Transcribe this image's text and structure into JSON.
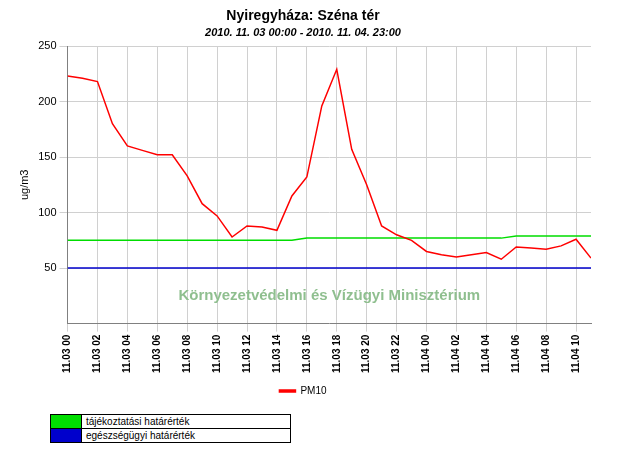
{
  "chart_data": {
    "type": "line",
    "title": "Nyiregyháza: Széna tér",
    "subtitle": "2010. 11. 03 00:00 - 2010. 11. 04. 23:00",
    "y_label": "ug/m3",
    "annotations": [
      "Környezetvédelmi és Vízügyi Minisztérium"
    ],
    "categories": [
      "11.03 00",
      null,
      "11.03 02",
      null,
      "11.03 04",
      null,
      "11.03 06",
      null,
      "11.03 08",
      null,
      "11.03 10",
      null,
      "11.03 12",
      null,
      "11.03 14",
      null,
      "11.03 16",
      null,
      "11.03 18",
      null,
      "11.03 20",
      null,
      "11.03 22",
      null,
      "11.04 00",
      null,
      "11.04 02",
      null,
      "11.04 04",
      null,
      "11.04 06",
      null,
      "11.04 08",
      null,
      "11.04 10",
      null
    ],
    "series": [
      {
        "name": "PM10",
        "color": "#ff0000",
        "values": [
          223,
          221,
          218,
          180,
          160,
          156,
          152,
          152,
          133,
          108,
          97,
          78,
          88,
          87,
          84,
          115,
          132,
          196,
          229,
          157,
          125,
          88,
          80,
          75,
          65,
          62,
          60,
          62,
          64,
          58,
          69,
          68,
          67,
          70,
          76,
          59
        ]
      },
      {
        "name": "tájékoztatási határérték",
        "color": "#00dd00",
        "values": [
          75,
          75,
          75,
          75,
          75,
          75,
          75,
          75,
          75,
          75,
          75,
          75,
          75,
          75,
          75,
          75,
          77,
          77,
          77,
          77,
          77,
          77,
          77,
          77,
          77,
          77,
          77,
          77,
          77,
          77,
          79,
          79,
          79,
          79,
          79,
          79
        ]
      },
      {
        "name": "egészségügyi határérték",
        "color": "#0000cc",
        "values": [
          50,
          50,
          50,
          50,
          50,
          50,
          50,
          50,
          50,
          50,
          50,
          50,
          50,
          50,
          50,
          50,
          50,
          50,
          50,
          50,
          50,
          50,
          50,
          50,
          50,
          50,
          50,
          50,
          50,
          50,
          50,
          50,
          50,
          50,
          50,
          50
        ]
      }
    ],
    "ylim": [
      0,
      250
    ],
    "yticks": [
      50,
      100,
      150,
      200,
      250
    ],
    "grid": true,
    "legend": "bottom"
  }
}
